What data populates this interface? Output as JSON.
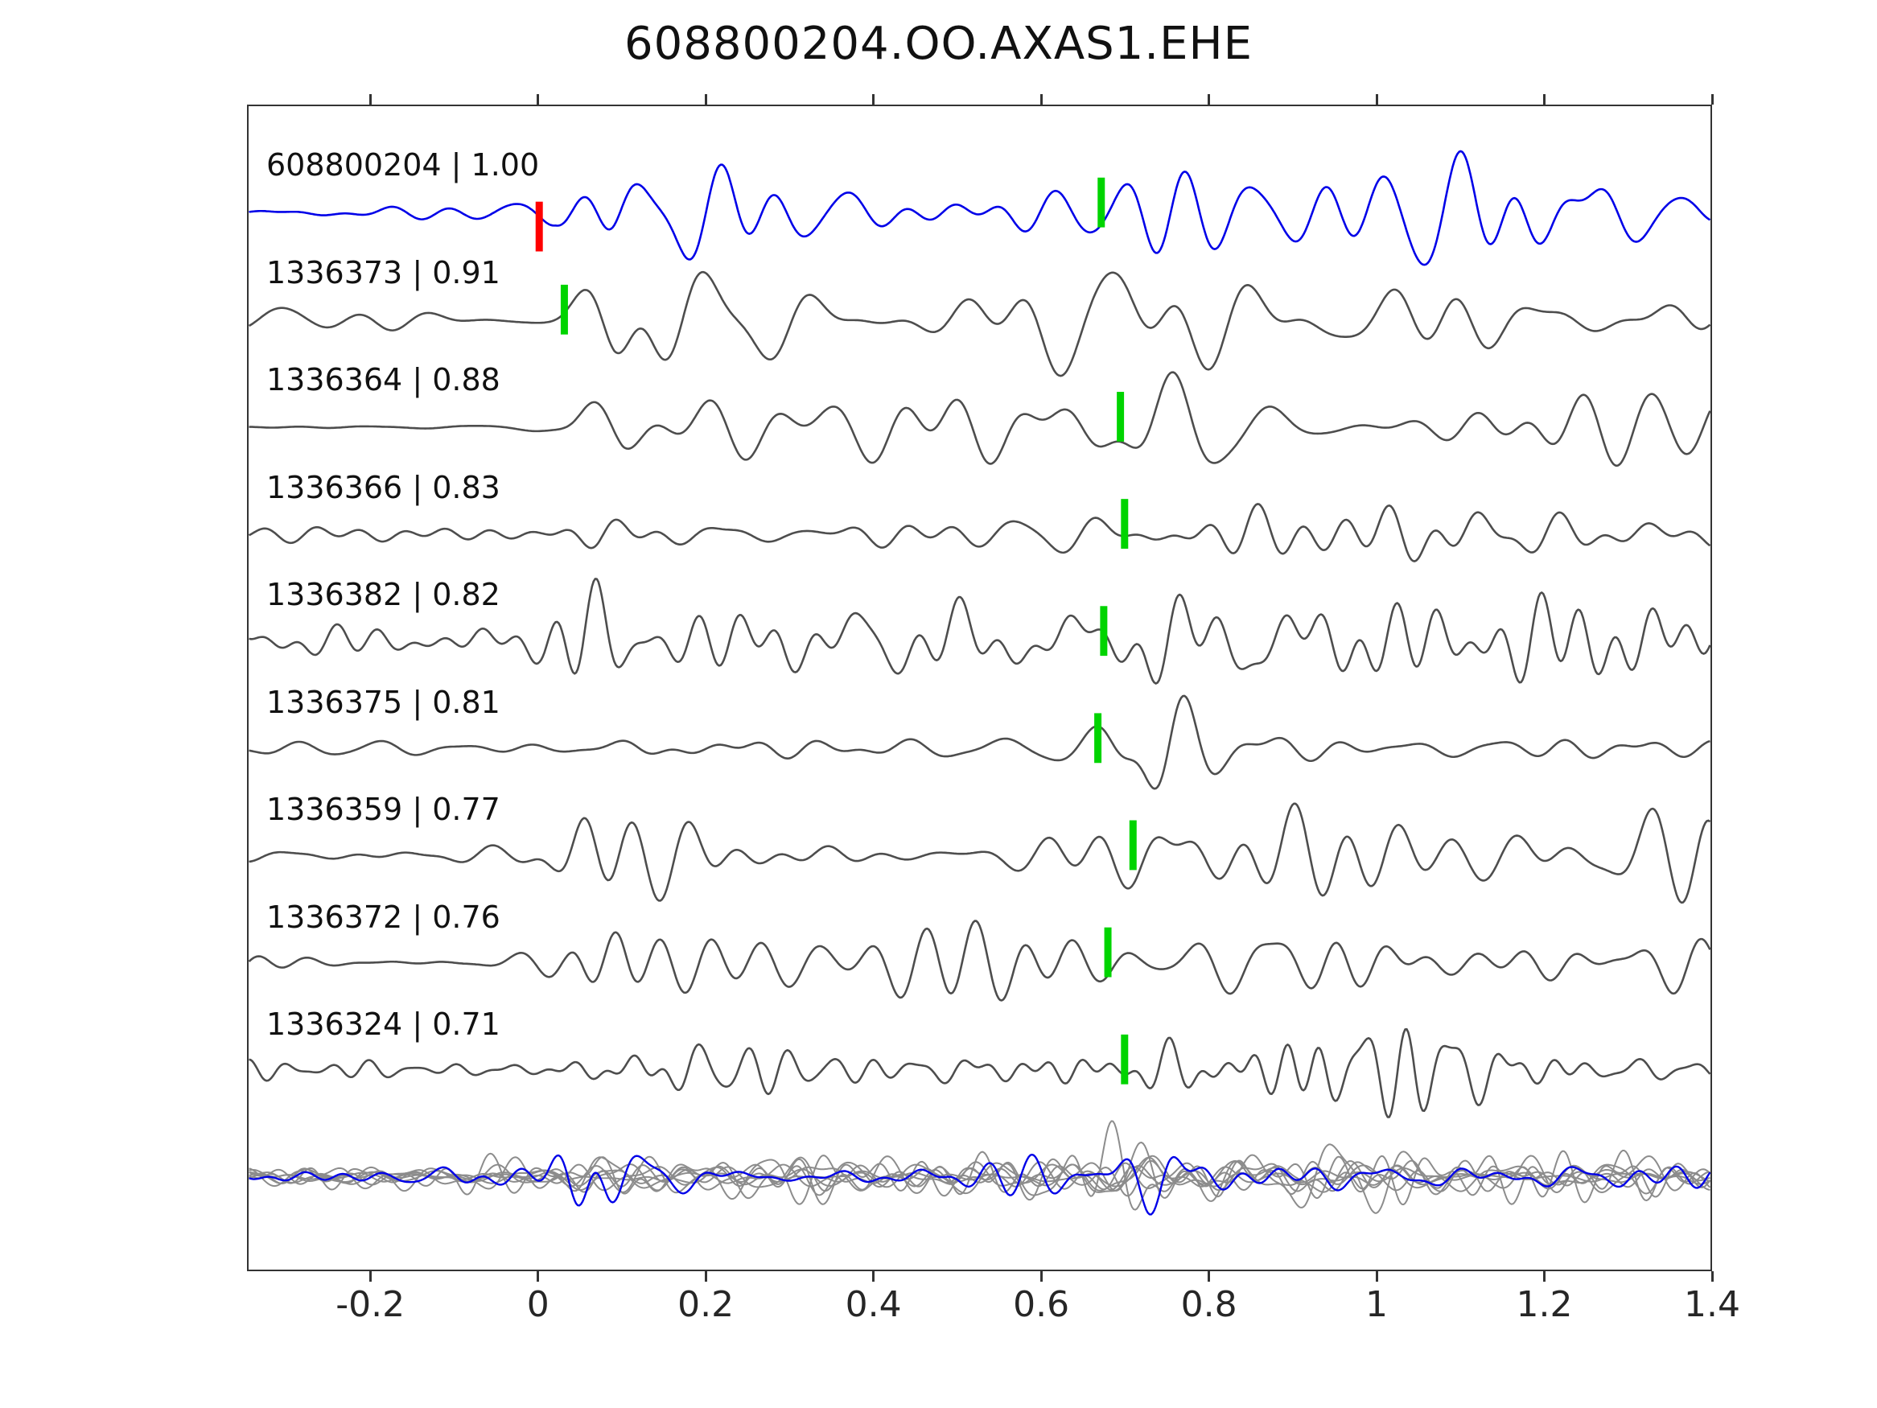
{
  "title": "608800204.OO.AXAS1.EHE",
  "chart_data": {
    "type": "line",
    "title": "608800204.OO.AXAS1.EHE",
    "description": "Template matching / detection waveform comparison: template trace (blue) with correlated detection traces (gray), pick times marked, all traces overlaid in bottom row",
    "x_range": [
      -0.347,
      1.4
    ],
    "x_ticks": [
      {
        "value": -0.2,
        "label": "-0.2"
      },
      {
        "value": 0,
        "label": "0"
      },
      {
        "value": 0.2,
        "label": "0.2"
      },
      {
        "value": 0.4,
        "label": "0.4"
      },
      {
        "value": 0.6,
        "label": "0.6"
      },
      {
        "value": 0.8,
        "label": "0.8"
      },
      {
        "value": 1,
        "label": "1"
      },
      {
        "value": 1.2,
        "label": "1.2"
      },
      {
        "value": 1.4,
        "label": "1.4"
      }
    ],
    "grid": false,
    "legend": false,
    "colors": {
      "template_trace": "#0000e8",
      "detection_trace": "#4d4d4d",
      "overlay_trace": "#8c8c8c",
      "pick_marker": "#00d400",
      "template_marker": "#ff0000",
      "axis": "#333333"
    },
    "traces": [
      {
        "label": "608800204 | 1.00",
        "id": "608800204",
        "correlation": 1.0,
        "role": "template",
        "picks": [
          {
            "x": 0.0,
            "color": "#ff0000"
          },
          {
            "x": 0.672,
            "color": "#00d400"
          }
        ],
        "waveform": {
          "seed": 11,
          "onset": 0.02,
          "pre": 9,
          "post": 28,
          "flo": 6,
          "fhi": 22,
          "bursts": [
            {
              "x": 0.73,
              "a": 18,
              "w": 0.06
            }
          ]
        }
      },
      {
        "label": "1336373 | 0.91",
        "id": "1336373",
        "correlation": 0.91,
        "role": "detection",
        "picks": [
          {
            "x": 0.03,
            "color": "#00d400"
          }
        ],
        "waveform": {
          "seed": 23,
          "onset": 0.02,
          "pre": 7,
          "post": 32,
          "flo": 5,
          "fhi": 20,
          "bursts": [
            {
              "x": 0.09,
              "a": 24,
              "w": 0.07
            },
            {
              "x": 0.72,
              "a": 10,
              "w": 0.1
            }
          ]
        }
      },
      {
        "label": "1336364 | 0.88",
        "id": "1336364",
        "correlation": 0.88,
        "role": "detection",
        "picks": [
          {
            "x": 0.695,
            "color": "#00d400"
          }
        ],
        "waveform": {
          "seed": 37,
          "onset": 0.03,
          "pre": 2.5,
          "post": 30,
          "flo": 5,
          "fhi": 18,
          "bursts": [
            {
              "x": 0.05,
              "a": 18,
              "w": 0.05
            },
            {
              "x": 0.76,
              "a": 20,
              "w": 0.12
            }
          ]
        }
      },
      {
        "label": "1336366 | 0.83",
        "id": "1336366",
        "correlation": 0.83,
        "role": "detection",
        "picks": [
          {
            "x": 0.7,
            "color": "#00d400"
          }
        ],
        "waveform": {
          "seed": 41,
          "onset": 0.0,
          "pre": 9,
          "post": 20,
          "flo": 6,
          "fhi": 22,
          "bursts": [
            {
              "x": 0.8,
              "a": 26,
              "w": 0.09
            }
          ]
        }
      },
      {
        "label": "1336382 | 0.82",
        "id": "1336382",
        "correlation": 0.82,
        "role": "detection",
        "picks": [
          {
            "x": 0.675,
            "color": "#00d400"
          }
        ],
        "waveform": {
          "seed": 53,
          "onset": 0.0,
          "pre": 14,
          "post": 28,
          "flo": 6,
          "fhi": 24,
          "bursts": [
            {
              "x": 0.05,
              "a": 12,
              "w": 0.05
            },
            {
              "x": 0.72,
              "a": 12,
              "w": 0.1
            }
          ]
        }
      },
      {
        "label": "1336375 | 0.81",
        "id": "1336375",
        "correlation": 0.81,
        "role": "detection",
        "picks": [
          {
            "x": 0.668,
            "color": "#00d400"
          }
        ],
        "waveform": {
          "seed": 67,
          "onset": 0.05,
          "pre": 5,
          "post": 13,
          "flo": 5,
          "fhi": 18,
          "bursts": [
            {
              "x": 0.73,
              "a": 40,
              "w": 0.055
            }
          ]
        }
      },
      {
        "label": "1336359 | 0.77",
        "id": "1336359",
        "correlation": 0.77,
        "role": "detection",
        "picks": [
          {
            "x": 0.71,
            "color": "#00d400"
          }
        ],
        "waveform": {
          "seed": 71,
          "onset": 0.02,
          "pre": 9,
          "post": 25,
          "flo": 6,
          "fhi": 22,
          "bursts": [
            {
              "x": 0.05,
              "a": 22,
              "w": 0.05
            },
            {
              "x": 0.98,
              "a": 10,
              "w": 0.1
            }
          ]
        }
      },
      {
        "label": "1336372 | 0.76",
        "id": "1336372",
        "correlation": 0.76,
        "role": "detection",
        "picks": [
          {
            "x": 0.68,
            "color": "#00d400"
          }
        ],
        "waveform": {
          "seed": 83,
          "onset": 0.03,
          "pre": 8,
          "post": 28,
          "flo": 5,
          "fhi": 20,
          "bursts": [
            {
              "x": 0.07,
              "a": 16,
              "w": 0.06
            },
            {
              "x": 0.97,
              "a": 14,
              "w": 0.12
            }
          ]
        }
      },
      {
        "label": "1336324 | 0.71",
        "id": "1336324",
        "correlation": 0.71,
        "role": "detection",
        "picks": [
          {
            "x": 0.7,
            "color": "#00d400"
          }
        ],
        "waveform": {
          "seed": 97,
          "onset": 0.0,
          "pre": 8,
          "post": 16,
          "flo": 9,
          "fhi": 30,
          "bursts": [
            {
              "x": 0.92,
              "a": 20,
              "w": 0.22
            }
          ]
        }
      }
    ],
    "overlay_row": {
      "description": "All detection waveforms overlaid (gray) together with template (blue)",
      "gray_count": 8,
      "waveform": {
        "onset": 0.0,
        "pre": 9,
        "post": 15,
        "flo": 6,
        "fhi": 24,
        "bursts": [
          {
            "x": 0.06,
            "a": 16,
            "w": 0.05
          },
          {
            "x": 0.72,
            "a": 13,
            "w": 0.08
          }
        ]
      }
    }
  }
}
